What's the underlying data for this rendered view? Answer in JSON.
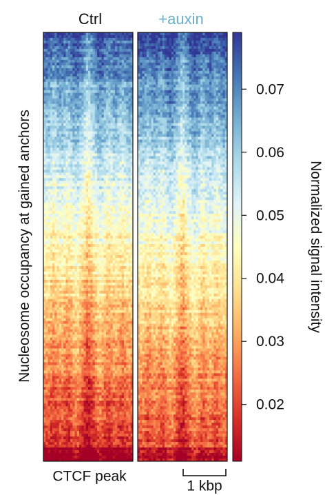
{
  "chart_data": {
    "type": "heatmap",
    "panels": [
      {
        "name": "Ctrl",
        "label_color": "#111111"
      },
      {
        "name": "+auxin",
        "label_color": "#6aaec9"
      }
    ],
    "ylabel": "Nucleosome occupancy at gained anchors",
    "xlabel": "CTCF peak",
    "scale_bar_label": "1 kbp",
    "colorbar": {
      "label": "Normalized signal intensity",
      "ticks": [
        0.02,
        0.03,
        0.04,
        0.05,
        0.06,
        0.07
      ],
      "tick_labels": [
        "0.02",
        "0.03",
        "0.04",
        "0.05",
        "0.06",
        "0.07"
      ],
      "range": [
        0.011,
        0.079
      ],
      "colormap": "RdYlBu",
      "colors": [
        "#a50026",
        "#d73027",
        "#f46d43",
        "#fdae61",
        "#fee090",
        "#ffffbf",
        "#e0f3f8",
        "#abd9e9",
        "#74add1",
        "#4575b4",
        "#313695"
      ]
    },
    "row_order": "rows sorted by signal, highest at top"
  }
}
